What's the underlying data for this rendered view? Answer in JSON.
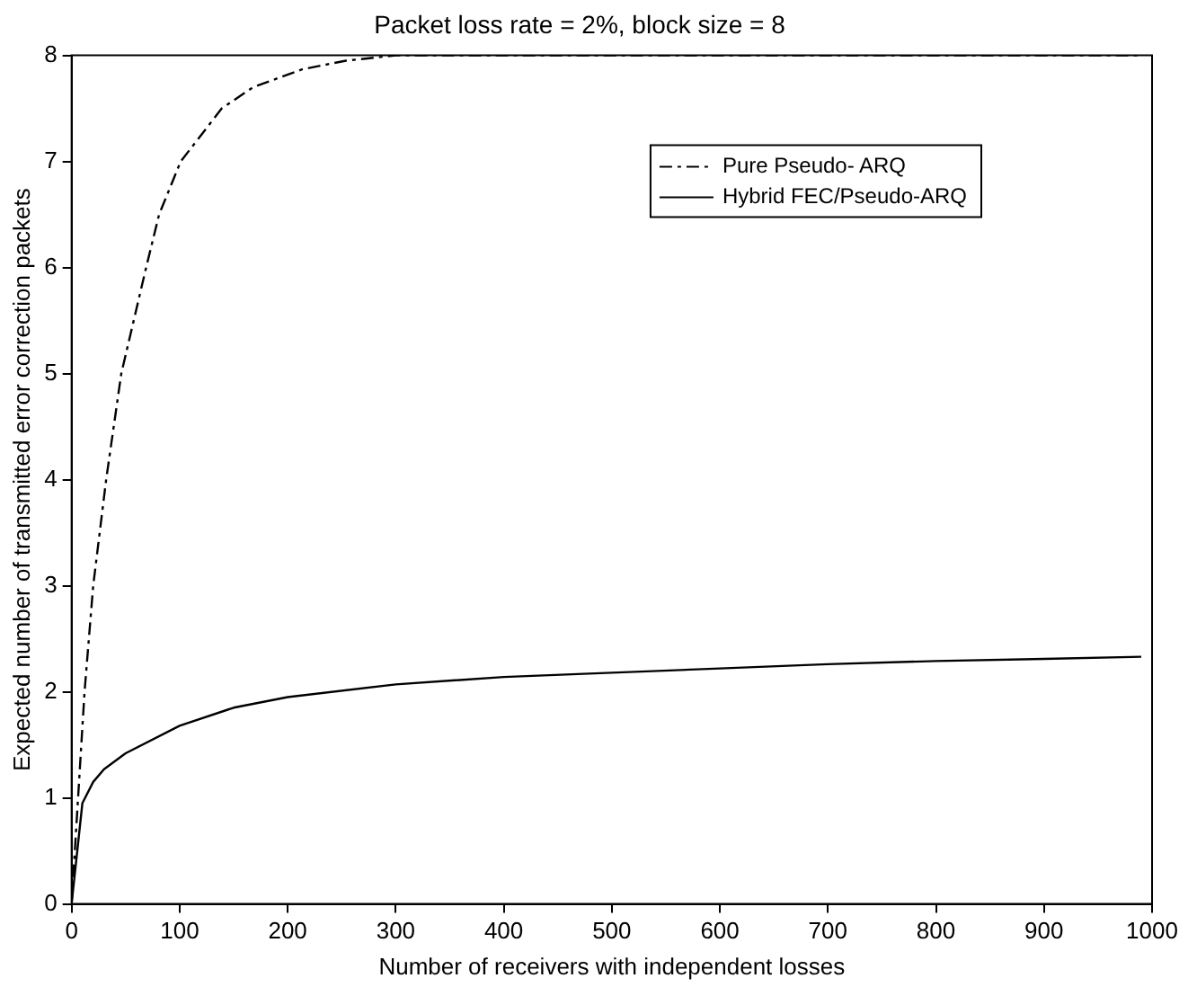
{
  "chart_data": {
    "type": "line",
    "title": "Packet loss rate = 2%, block size = 8",
    "xlabel": "Number of receivers with independent losses",
    "ylabel": "Expected number of transmitted error correction packets",
    "xlim": [
      0,
      1000
    ],
    "xticks": [
      0,
      100,
      200,
      300,
      400,
      500,
      600,
      700,
      800,
      900,
      1000
    ],
    "ylim": [
      0,
      8
    ],
    "yticks": [
      0,
      1,
      2,
      3,
      4,
      5,
      6,
      7,
      8
    ],
    "grid": false,
    "legend": "top right",
    "marker": "none",
    "series": [
      {
        "name": "Pure Pseudo- ARQ",
        "color": "#000000",
        "line_style": "dashdot",
        "x": [
          0,
          6,
          12,
          20,
          32,
          46,
          69,
          81,
          101,
          139,
          168,
          214,
          254,
          300,
          400,
          500,
          600,
          700,
          800,
          900,
          990
        ],
        "values": [
          0,
          1,
          2,
          3,
          4,
          5,
          6,
          6.5,
          7,
          7.5,
          7.7,
          7.87,
          7.95,
          8,
          8,
          8,
          8,
          8,
          8,
          8,
          8
        ]
      },
      {
        "name": "Hybrid FEC/Pseudo-ARQ",
        "color": "#000000",
        "line_style": "solid",
        "x": [
          0,
          10,
          20,
          30,
          50,
          100,
          150,
          200,
          300,
          400,
          500,
          600,
          700,
          800,
          900,
          990
        ],
        "values": [
          0,
          0.95,
          1.15,
          1.27,
          1.42,
          1.68,
          1.85,
          1.95,
          2.07,
          2.14,
          2.18,
          2.22,
          2.26,
          2.29,
          2.31,
          2.33
        ]
      }
    ]
  }
}
